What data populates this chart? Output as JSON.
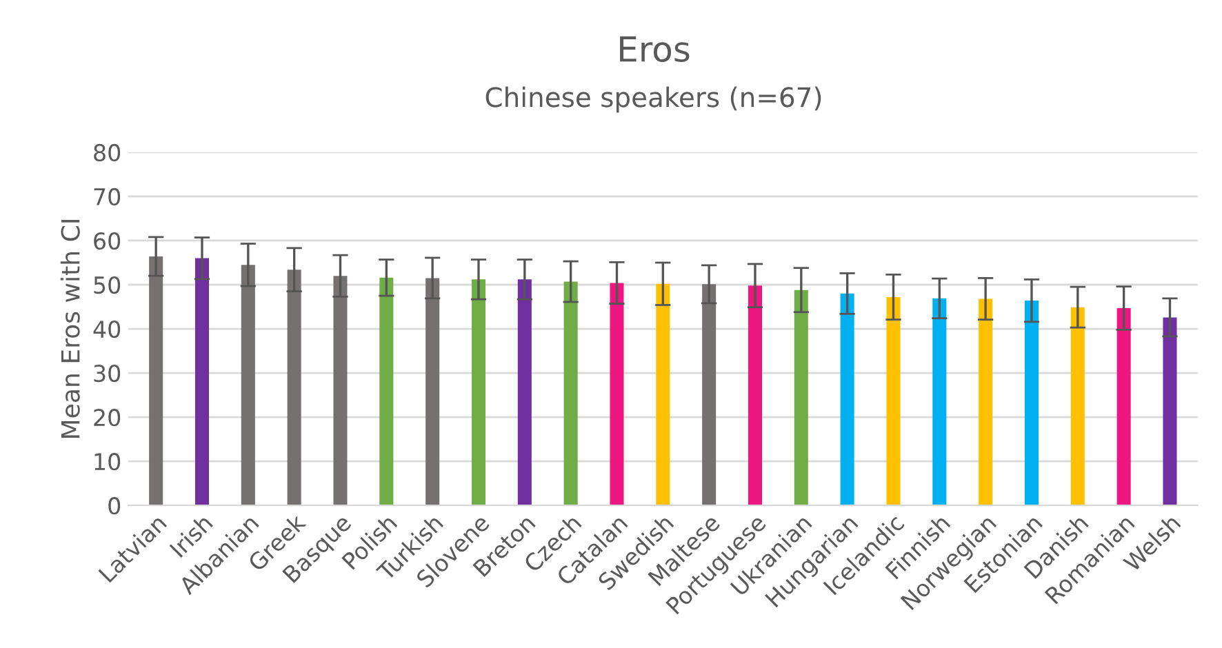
{
  "chart_data": {
    "type": "bar",
    "title": "Eros",
    "subtitle": "Chinese speakers (n=67)",
    "ylabel": "Mean Eros with CI",
    "categories": [
      "Latvian",
      "Irish",
      "Albanian",
      "Greek",
      "Basque",
      "Polish",
      "Turkish",
      "Slovene",
      "Breton",
      "Czech",
      "Catalan",
      "Swedish",
      "Maltese",
      "Portuguese",
      "Ukranian",
      "Hungarian",
      "Icelandic",
      "Finnish",
      "Norwegian",
      "Estonian",
      "Danish",
      "Romanian",
      "Welsh"
    ],
    "values": [
      56.4,
      56.0,
      54.5,
      53.4,
      52.0,
      51.6,
      51.5,
      51.2,
      51.2,
      50.7,
      50.4,
      50.2,
      50.1,
      49.8,
      48.8,
      48.0,
      47.2,
      46.9,
      46.8,
      46.4,
      44.9,
      44.7,
      42.6
    ],
    "errors": [
      4.4,
      4.7,
      4.8,
      4.9,
      4.7,
      4.1,
      4.6,
      4.5,
      4.5,
      4.6,
      4.7,
      4.8,
      4.3,
      4.9,
      5.0,
      4.6,
      5.1,
      4.5,
      4.7,
      4.8,
      4.6,
      4.9,
      4.3
    ],
    "colors": [
      "#767171",
      "#7030a0",
      "#767171",
      "#767171",
      "#767171",
      "#70ad47",
      "#767171",
      "#70ad47",
      "#7030a0",
      "#70ad47",
      "#ee1680",
      "#ffc000",
      "#767171",
      "#ee1680",
      "#70ad47",
      "#00b0f0",
      "#ffc000",
      "#00b0f0",
      "#ffc000",
      "#00b0f0",
      "#ffc000",
      "#ee1680",
      "#7030a0"
    ],
    "ylim": [
      0,
      80
    ],
    "yticks": [
      0,
      10,
      20,
      30,
      40,
      50,
      60,
      70,
      80
    ],
    "grid": "y",
    "legend": false
  }
}
